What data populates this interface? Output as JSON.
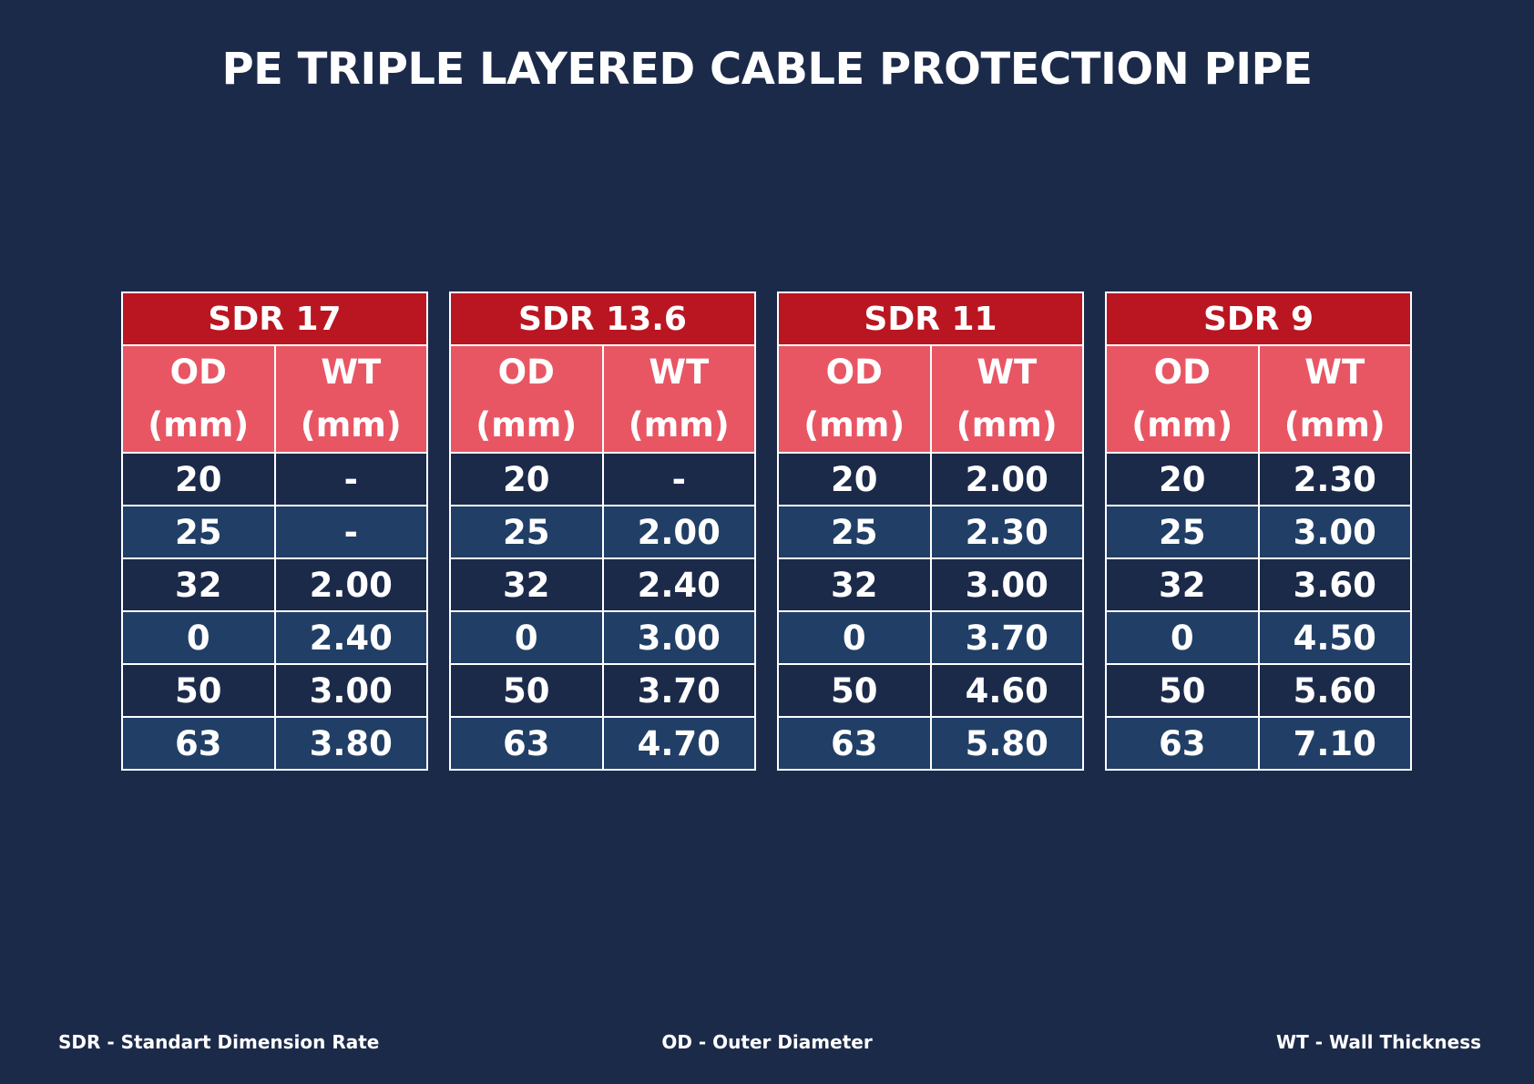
{
  "title": "PE TRIPLE LAYERED CABLE PROTECTION PIPE",
  "colors": {
    "background": "#1c2a4a",
    "sdr_header": "#ba1622",
    "column_header": "#e85664",
    "row_dark": "#1c2a4a",
    "row_light": "#213f66"
  },
  "tables": [
    {
      "name": "SDR 17",
      "od_header": [
        "OD",
        "(mm)"
      ],
      "wt_header": [
        "WT",
        "(mm)"
      ],
      "rows": [
        {
          "od": "20",
          "wt": "-"
        },
        {
          "od": "25",
          "wt": "-"
        },
        {
          "od": "32",
          "wt": "2.00"
        },
        {
          "od": "0",
          "wt": "2.40"
        },
        {
          "od": "50",
          "wt": "3.00"
        },
        {
          "od": "63",
          "wt": "3.80"
        }
      ]
    },
    {
      "name": "SDR 13.6",
      "od_header": [
        "OD",
        "(mm)"
      ],
      "wt_header": [
        "WT",
        "(mm)"
      ],
      "rows": [
        {
          "od": "20",
          "wt": "-"
        },
        {
          "od": "25",
          "wt": "2.00"
        },
        {
          "od": "32",
          "wt": "2.40"
        },
        {
          "od": "0",
          "wt": "3.00"
        },
        {
          "od": "50",
          "wt": "3.70"
        },
        {
          "od": "63",
          "wt": "4.70"
        }
      ]
    },
    {
      "name": "SDR 11",
      "od_header": [
        "OD",
        "(mm)"
      ],
      "wt_header": [
        "WT",
        "(mm)"
      ],
      "rows": [
        {
          "od": "20",
          "wt": "2.00"
        },
        {
          "od": "25",
          "wt": "2.30"
        },
        {
          "od": "32",
          "wt": "3.00"
        },
        {
          "od": "0",
          "wt": "3.70"
        },
        {
          "od": "50",
          "wt": "4.60"
        },
        {
          "od": "63",
          "wt": "5.80"
        }
      ]
    },
    {
      "name": "SDR 9",
      "od_header": [
        "OD",
        "(mm)"
      ],
      "wt_header": [
        "WT",
        "(mm)"
      ],
      "rows": [
        {
          "od": "20",
          "wt": "2.30"
        },
        {
          "od": "25",
          "wt": "3.00"
        },
        {
          "od": "32",
          "wt": "3.60"
        },
        {
          "od": "0",
          "wt": "4.50"
        },
        {
          "od": "50",
          "wt": "5.60"
        },
        {
          "od": "63",
          "wt": "7.10"
        }
      ]
    }
  ],
  "footer": {
    "sdr_legend": "SDR - Standart Dimension Rate",
    "od_legend": "OD - Outer Diameter",
    "wt_legend": "WT - Wall Thickness"
  }
}
